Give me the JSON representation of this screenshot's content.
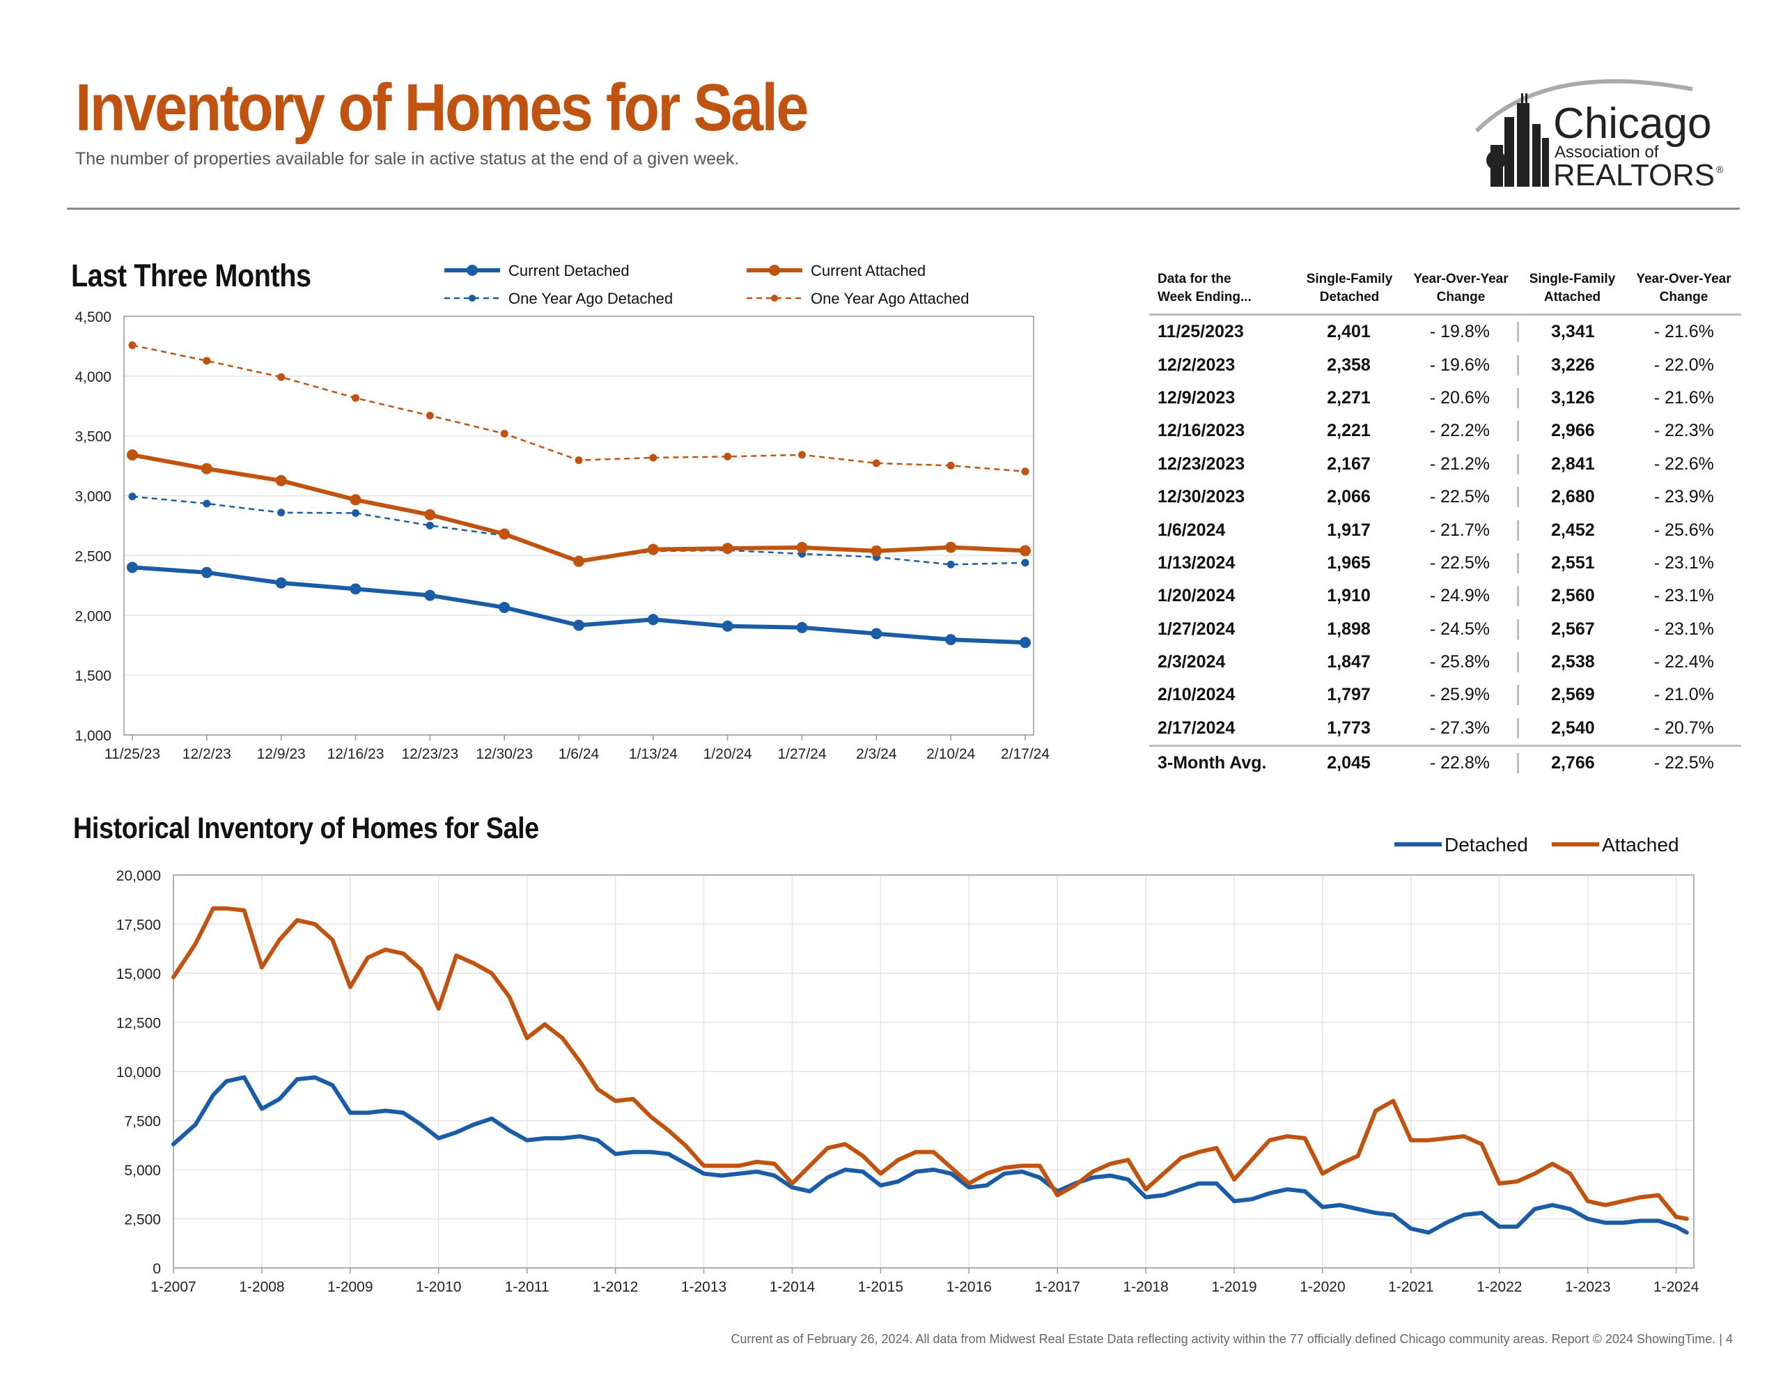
{
  "header": {
    "title": "Inventory of Homes for Sale",
    "subtitle": "The number of properties available for sale in active status at the end of a given week."
  },
  "logo": {
    "line1": "Chicago",
    "line2": "Association of",
    "line3": "REALTORS",
    "mark": "®"
  },
  "colors": {
    "accent": "#c0530f",
    "detached": "#1a5da6",
    "attached": "#c0530f"
  },
  "sections": {
    "recent_title": "Last Three Months",
    "historical_title": "Historical Inventory of Homes for Sale"
  },
  "chart_data": [
    {
      "type": "line",
      "title": "Last Three Months",
      "categories": [
        "11/25/23",
        "12/2/23",
        "12/9/23",
        "12/16/23",
        "12/23/23",
        "12/30/23",
        "1/6/24",
        "1/13/24",
        "1/20/24",
        "1/27/24",
        "2/3/24",
        "2/10/24",
        "2/17/24"
      ],
      "series": [
        {
          "name": "Current Detached",
          "style": "solid",
          "color": "#1a5da6",
          "values": [
            2401,
            2358,
            2271,
            2221,
            2167,
            2066,
            1917,
            1965,
            1910,
            1898,
            1847,
            1797,
            1773
          ]
        },
        {
          "name": "Current Attached",
          "style": "solid",
          "color": "#c0530f",
          "values": [
            3341,
            3226,
            3126,
            2966,
            2841,
            2680,
            2452,
            2551,
            2560,
            2567,
            2538,
            2569,
            2540
          ]
        },
        {
          "name": "One Year Ago Detached",
          "style": "dashed",
          "color": "#1a5da6",
          "values": [
            2994,
            2934,
            2859,
            2855,
            2751,
            2667,
            2448,
            2537,
            2544,
            2514,
            2487,
            2425,
            2440
          ]
        },
        {
          "name": "One Year Ago Attached",
          "style": "dashed",
          "color": "#c0530f",
          "values": [
            4258,
            4128,
            3992,
            3817,
            3670,
            3519,
            3297,
            3318,
            3327,
            3342,
            3272,
            3252,
            3203
          ]
        }
      ],
      "ylim": [
        1000,
        4500
      ],
      "yticks": [
        "1,000",
        "1,500",
        "2,000",
        "2,500",
        "3,000",
        "3,500",
        "4,000",
        "4,500"
      ],
      "grid": true,
      "legend": "top"
    },
    {
      "type": "line",
      "title": "Historical Inventory of Homes for Sale",
      "x_labels": [
        "1-2007",
        "1-2008",
        "1-2009",
        "1-2010",
        "1-2011",
        "1-2012",
        "1-2013",
        "1-2014",
        "1-2015",
        "1-2016",
        "1-2017",
        "1-2018",
        "1-2019",
        "1-2020",
        "1-2021",
        "1-2022",
        "1-2023",
        "1-2024"
      ],
      "x": [
        2007.0,
        2007.25,
        2007.45,
        2007.6,
        2007.8,
        2008.0,
        2008.2,
        2008.4,
        2008.6,
        2008.8,
        2009.0,
        2009.2,
        2009.4,
        2009.6,
        2009.8,
        2010.0,
        2010.2,
        2010.4,
        2010.6,
        2010.8,
        2011.0,
        2011.2,
        2011.4,
        2011.6,
        2011.8,
        2012.0,
        2012.2,
        2012.4,
        2012.6,
        2012.8,
        2013.0,
        2013.2,
        2013.4,
        2013.6,
        2013.8,
        2014.0,
        2014.2,
        2014.4,
        2014.6,
        2014.8,
        2015.0,
        2015.2,
        2015.4,
        2015.6,
        2015.8,
        2016.0,
        2016.2,
        2016.4,
        2016.6,
        2016.8,
        2017.0,
        2017.2,
        2017.4,
        2017.6,
        2017.8,
        2018.0,
        2018.2,
        2018.4,
        2018.6,
        2018.8,
        2019.0,
        2019.2,
        2019.4,
        2019.6,
        2019.8,
        2020.0,
        2020.2,
        2020.4,
        2020.6,
        2020.8,
        2021.0,
        2021.2,
        2021.4,
        2021.6,
        2021.8,
        2022.0,
        2022.2,
        2022.4,
        2022.6,
        2022.8,
        2023.0,
        2023.2,
        2023.4,
        2023.6,
        2023.8,
        2024.0,
        2024.12
      ],
      "series": [
        {
          "name": "Detached",
          "color": "#1a5da6",
          "values": [
            6300,
            7300,
            8800,
            9500,
            9700,
            8100,
            8600,
            9600,
            9700,
            9300,
            7900,
            7900,
            8000,
            7900,
            7300,
            6600,
            6900,
            7300,
            7600,
            7000,
            6500,
            6600,
            6600,
            6700,
            6500,
            5800,
            5900,
            5900,
            5800,
            5300,
            4800,
            4700,
            4800,
            4900,
            4700,
            4100,
            3900,
            4600,
            5000,
            4900,
            4200,
            4400,
            4900,
            5000,
            4800,
            4100,
            4200,
            4800,
            4900,
            4600,
            3900,
            4300,
            4600,
            4700,
            4500,
            3600,
            3700,
            4000,
            4300,
            4300,
            3400,
            3500,
            3800,
            4000,
            3900,
            3100,
            3200,
            3000,
            2800,
            2700,
            2000,
            1800,
            2300,
            2700,
            2800,
            2100,
            2100,
            3000,
            3200,
            3000,
            2500,
            2300,
            2300,
            2400,
            2400,
            2100,
            1800
          ]
        },
        {
          "name": "Attached",
          "color": "#c0530f",
          "values": [
            14800,
            16500,
            18300,
            18300,
            18200,
            15300,
            16700,
            17700,
            17500,
            16700,
            14300,
            15800,
            16200,
            16000,
            15200,
            13200,
            15900,
            15500,
            15000,
            13800,
            11700,
            12400,
            11700,
            10500,
            9100,
            8500,
            8600,
            7700,
            7000,
            6200,
            5200,
            5200,
            5200,
            5400,
            5300,
            4300,
            5200,
            6100,
            6300,
            5700,
            4800,
            5500,
            5900,
            5900,
            5100,
            4300,
            4800,
            5100,
            5200,
            5200,
            3700,
            4200,
            4900,
            5300,
            5500,
            4000,
            4800,
            5600,
            5900,
            6100,
            4500,
            5500,
            6500,
            6700,
            6600,
            4800,
            5300,
            5700,
            8000,
            8500,
            6500,
            6500,
            6600,
            6700,
            6300,
            4300,
            4400,
            4800,
            5300,
            4800,
            3400,
            3200,
            3400,
            3600,
            3700,
            2600,
            2500
          ]
        }
      ],
      "ylim": [
        0,
        20000
      ],
      "yticks": [
        "0",
        "2,500",
        "5,000",
        "7,500",
        "10,000",
        "12,500",
        "15,000",
        "17,500",
        "20,000"
      ],
      "grid": true,
      "legend": "top-right"
    }
  ],
  "table": {
    "headers": [
      "Data for the\nWeek Ending...",
      "Single-Family\nDetached",
      "Year-Over-Year\nChange",
      "Single-Family\nAttached",
      "Year-Over-Year\nChange"
    ],
    "rows": [
      [
        "11/25/2023",
        "2,401",
        "- 19.8%",
        "3,341",
        "- 21.6%"
      ],
      [
        "12/2/2023",
        "2,358",
        "- 19.6%",
        "3,226",
        "- 22.0%"
      ],
      [
        "12/9/2023",
        "2,271",
        "- 20.6%",
        "3,126",
        "- 21.6%"
      ],
      [
        "12/16/2023",
        "2,221",
        "- 22.2%",
        "2,966",
        "- 22.3%"
      ],
      [
        "12/23/2023",
        "2,167",
        "- 21.2%",
        "2,841",
        "- 22.6%"
      ],
      [
        "12/30/2023",
        "2,066",
        "- 22.5%",
        "2,680",
        "- 23.9%"
      ],
      [
        "1/6/2024",
        "1,917",
        "- 21.7%",
        "2,452",
        "- 25.6%"
      ],
      [
        "1/13/2024",
        "1,965",
        "- 22.5%",
        "2,551",
        "- 23.1%"
      ],
      [
        "1/20/2024",
        "1,910",
        "- 24.9%",
        "2,560",
        "- 23.1%"
      ],
      [
        "1/27/2024",
        "1,898",
        "- 24.5%",
        "2,567",
        "- 23.1%"
      ],
      [
        "2/3/2024",
        "1,847",
        "- 25.8%",
        "2,538",
        "- 22.4%"
      ],
      [
        "2/10/2024",
        "1,797",
        "- 25.9%",
        "2,569",
        "- 21.0%"
      ],
      [
        "2/17/2024",
        "1,773",
        "- 27.3%",
        "2,540",
        "- 20.7%"
      ]
    ],
    "average": [
      "3-Month Avg.",
      "2,045",
      "- 22.8%",
      "2,766",
      "- 22.5%"
    ]
  },
  "footer": "Current as of February 26, 2024. All data from Midwest Real Estate Data reflecting activity within the 77 officially defined Chicago community areas. Report © 2024 ShowingTime.  |  4"
}
